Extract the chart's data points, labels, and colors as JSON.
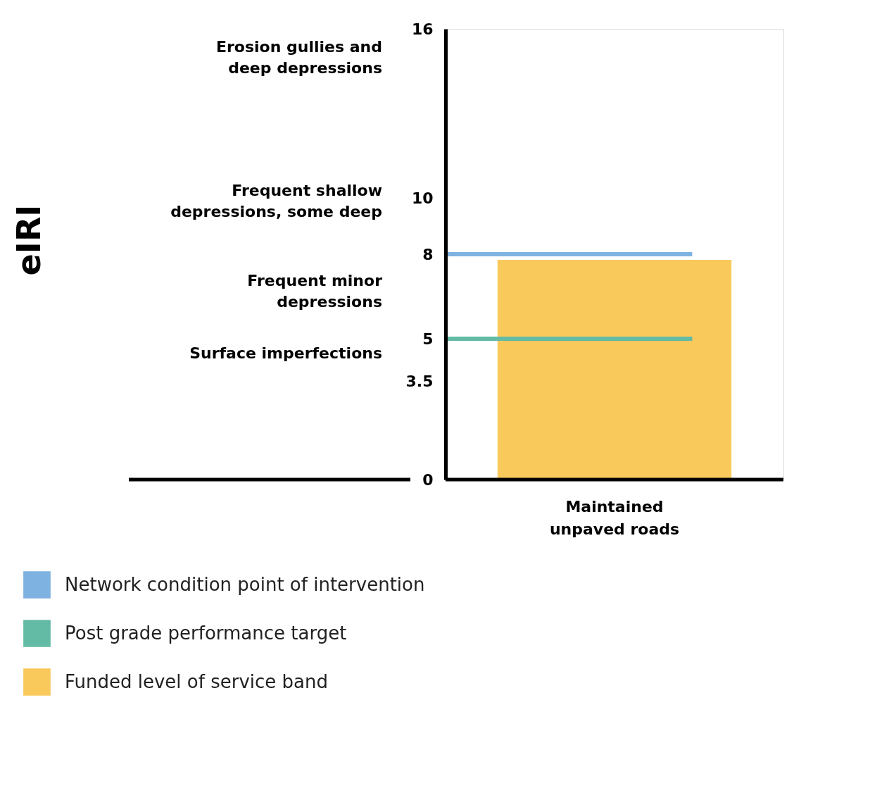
{
  "chart_data": {
    "type": "bar",
    "categories": [
      "Maintained unpaved roads"
    ],
    "series": [
      {
        "name": "Funded level of service band",
        "color": "#f9c95c",
        "values": [
          7.8
        ]
      }
    ],
    "ylim": [
      0,
      16
    ],
    "yticks": [
      0,
      3.5,
      5,
      8,
      10,
      16
    ],
    "ref_lines": [
      {
        "axis": "y",
        "value": 8,
        "label": "Network condition point of intervention",
        "color": "#7eb2e0"
      },
      {
        "axis": "y",
        "value": 5,
        "label": "Post grade performance target",
        "color": "#63bba5"
      }
    ],
    "annotations": [
      "eIRI",
      "Erosion gullies and deep depressions",
      "Frequent shallow depressions, some deep",
      "Frequent minor depressions",
      "Surface imperfections"
    ],
    "legend": "bottom",
    "grid": false
  }
}
